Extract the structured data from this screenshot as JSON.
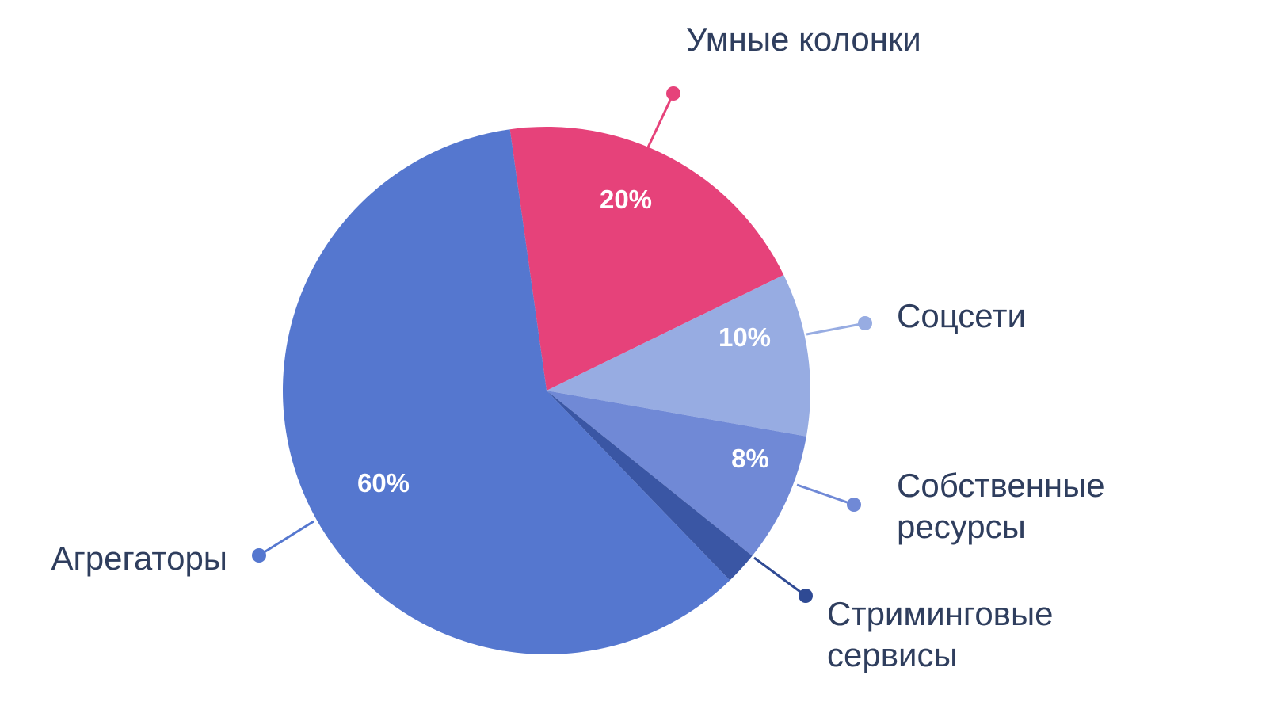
{
  "chart_data": {
    "type": "pie",
    "title": "",
    "slices": [
      {
        "label_lines": [
          "Умные колонки"
        ],
        "value": 20,
        "value_label": "20%",
        "color": "#e6427a",
        "leader_color": "#e6427a"
      },
      {
        "label_lines": [
          "Соцсети"
        ],
        "value": 10,
        "value_label": "10%",
        "color": "#97ace2",
        "leader_color": "#97ace2"
      },
      {
        "label_lines": [
          "Собственные",
          "ресурсы"
        ],
        "value": 8,
        "value_label": "8%",
        "color": "#7089d6",
        "leader_color": "#7089d6"
      },
      {
        "label_lines": [
          "Стриминговые",
          "сервисы"
        ],
        "value": 2,
        "value_label": "",
        "color": "#3a56a4",
        "leader_color": "#2f4a94"
      },
      {
        "label_lines": [
          "Агрегаторы"
        ],
        "value": 60,
        "value_label": "60%",
        "color": "#5577cf",
        "leader_color": "#5577cf"
      }
    ],
    "start_angle_deg": -8,
    "direction": "clockwise",
    "legend": "none"
  }
}
